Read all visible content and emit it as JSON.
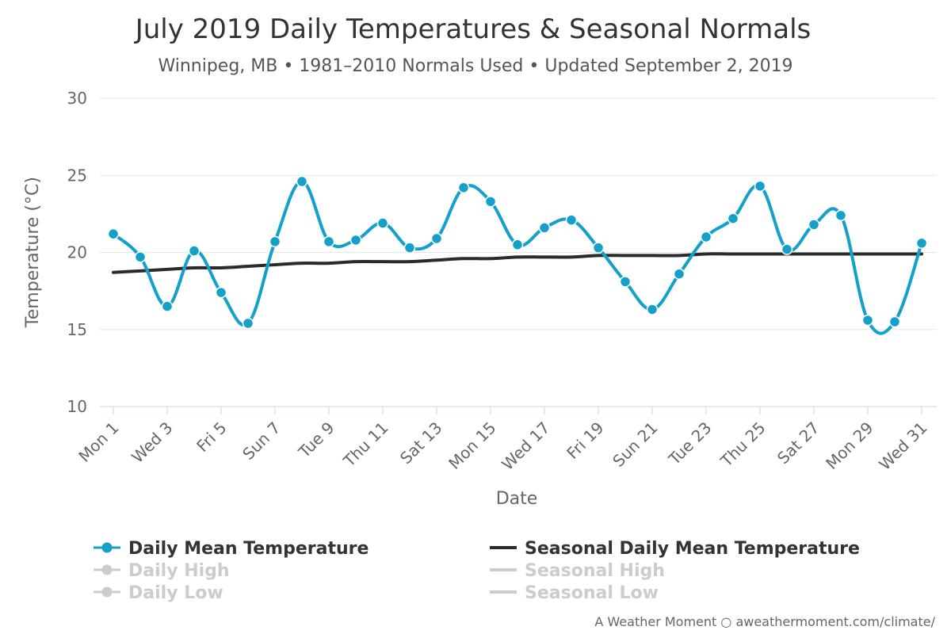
{
  "chart_data": {
    "type": "line",
    "title": "July 2019 Daily Temperatures & Seasonal Normals",
    "subtitle": "Winnipeg, MB • 1981–2010 Normals Used • Updated September 2, 2019",
    "xlabel": "Date",
    "ylabel": "Temperature (°C)",
    "ylim": [
      10,
      30
    ],
    "yticks": [
      10,
      15,
      20,
      25,
      30
    ],
    "grid": true,
    "x_tick_labels": [
      "Mon 1",
      "Wed 3",
      "Fri 5",
      "Sun 7",
      "Tue 9",
      "Thu 11",
      "Sat 13",
      "Mon 15",
      "Wed 17",
      "Fri 19",
      "Sun 21",
      "Tue 23",
      "Thu 25",
      "Sat 27",
      "Mon 29",
      "Wed 31"
    ],
    "x_tick_days": [
      1,
      3,
      5,
      7,
      9,
      11,
      13,
      15,
      17,
      19,
      21,
      23,
      25,
      27,
      29,
      31
    ],
    "x_days": [
      1,
      2,
      3,
      4,
      5,
      6,
      7,
      8,
      9,
      10,
      11,
      12,
      13,
      14,
      15,
      16,
      17,
      18,
      19,
      20,
      21,
      22,
      23,
      24,
      25,
      26,
      27,
      28,
      29,
      30,
      31
    ],
    "series": [
      {
        "name": "Daily Mean Temperature",
        "color": "#14a0c8",
        "markers": true,
        "values": [
          21.2,
          19.7,
          16.5,
          20.1,
          17.4,
          15.4,
          20.7,
          24.6,
          20.7,
          20.8,
          21.9,
          20.3,
          20.9,
          24.2,
          23.3,
          20.5,
          21.6,
          22.1,
          20.3,
          18.1,
          16.3,
          18.6,
          21.0,
          22.2,
          24.3,
          20.2,
          21.8,
          22.4,
          15.6,
          15.5,
          20.6
        ]
      },
      {
        "name": "Seasonal Daily Mean Temperature",
        "color": "#2b2b2b",
        "markers": false,
        "values": [
          18.7,
          18.8,
          18.9,
          19.0,
          19.0,
          19.1,
          19.2,
          19.3,
          19.3,
          19.4,
          19.4,
          19.4,
          19.5,
          19.6,
          19.6,
          19.7,
          19.7,
          19.7,
          19.8,
          19.8,
          19.8,
          19.8,
          19.9,
          19.9,
          19.9,
          19.9,
          19.9,
          19.9,
          19.9,
          19.9,
          19.9
        ]
      }
    ],
    "legend": {
      "placement": "bottom",
      "items": [
        {
          "label": "Daily Mean Temperature",
          "color": "#14a0c8",
          "symbol": "line-marker",
          "active": true
        },
        {
          "label": "Seasonal Daily Mean Temperature",
          "color": "#2b2b2b",
          "symbol": "line",
          "active": true
        },
        {
          "label": "Daily High",
          "color": "#cccccc",
          "symbol": "line-marker",
          "active": false
        },
        {
          "label": "Seasonal High",
          "color": "#cccccc",
          "symbol": "line",
          "active": false
        },
        {
          "label": "Daily Low",
          "color": "#cccccc",
          "symbol": "line-marker",
          "active": false
        },
        {
          "label": "Seasonal Low",
          "color": "#cccccc",
          "symbol": "line",
          "active": false
        }
      ]
    }
  },
  "credit": "A Weather Moment ○ aweathermoment.com/climate/",
  "colors": {
    "gridline": "#e6e6e6",
    "axis": "#ccd6eb",
    "inactive": "#cccccc",
    "legend_active_text": "#333333"
  }
}
